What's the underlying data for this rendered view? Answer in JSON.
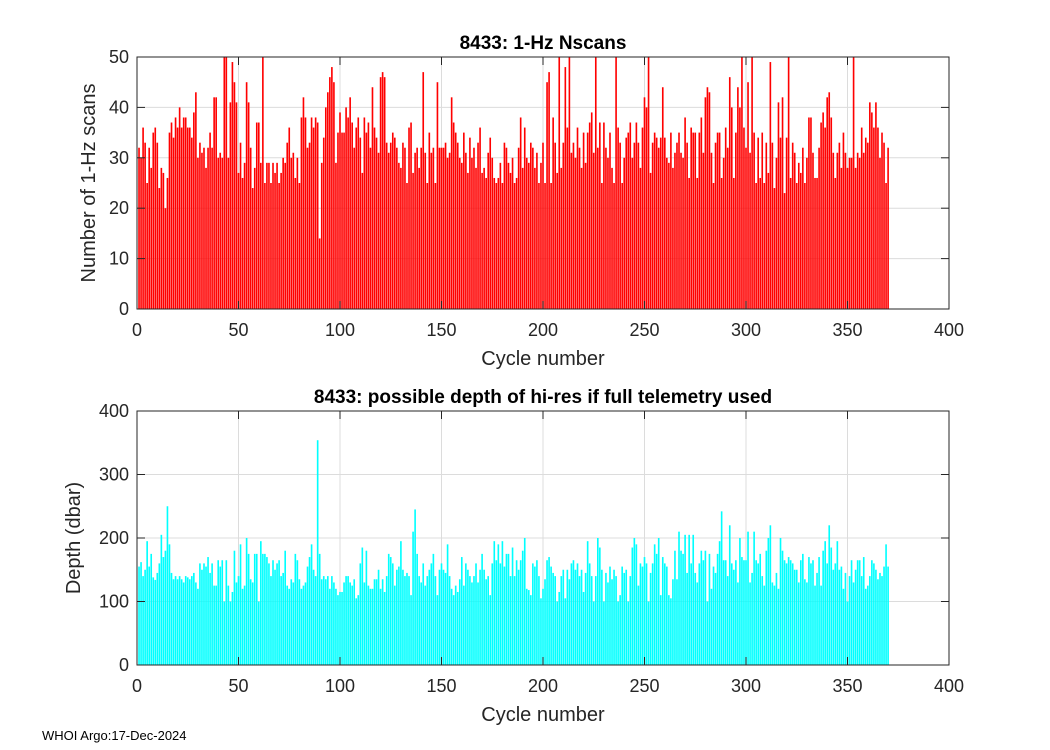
{
  "chart_data": [
    {
      "type": "bar",
      "title": "8433: 1-Hz Nscans",
      "xlabel": "Cycle number",
      "ylabel": "Number of 1-Hz scans",
      "xlim": [
        0,
        400
      ],
      "ylim": [
        0,
        50
      ],
      "xticks": [
        0,
        50,
        100,
        150,
        200,
        250,
        300,
        350,
        400
      ],
      "yticks": [
        0,
        10,
        20,
        30,
        40,
        50
      ],
      "grid": true,
      "color": "#ff0000",
      "x_start": 1,
      "values": [
        32,
        30,
        36,
        33,
        25,
        32,
        28,
        35,
        36,
        33,
        24,
        28,
        27,
        20,
        26,
        35,
        37,
        34,
        38,
        36,
        40,
        36,
        38,
        38,
        36,
        36,
        34,
        39,
        43,
        30,
        33,
        31,
        32,
        28,
        32,
        35,
        32,
        42,
        42,
        30,
        31,
        30,
        50,
        50,
        30,
        41,
        49,
        45,
        41,
        27,
        33,
        26,
        29,
        45,
        41,
        32,
        24,
        28,
        37,
        37,
        29,
        50,
        25,
        29,
        29,
        25,
        29,
        27,
        29,
        25,
        27,
        30,
        29,
        33,
        36,
        30,
        31,
        26,
        30,
        25,
        38,
        42,
        38,
        32,
        33,
        38,
        36,
        38,
        37,
        14,
        29,
        34,
        40,
        43,
        46,
        48,
        45,
        29,
        35,
        39,
        35,
        35,
        40,
        38,
        42,
        37,
        32,
        36,
        38,
        34,
        27,
        38,
        35,
        37,
        32,
        44,
        36,
        34,
        31,
        46,
        47,
        46,
        33,
        31,
        33,
        35,
        34,
        32,
        29,
        28,
        33,
        32,
        25,
        36,
        37,
        27,
        31,
        32,
        28,
        32,
        47,
        31,
        25,
        35,
        31,
        32,
        25,
        45,
        32,
        32,
        32,
        33,
        30,
        31,
        42,
        37,
        35,
        33,
        30,
        29,
        35,
        31,
        27,
        34,
        30,
        32,
        28,
        33,
        36,
        27,
        28,
        26,
        31,
        34,
        30,
        26,
        25,
        26,
        29,
        25,
        33,
        32,
        29,
        27,
        30,
        25,
        26,
        32,
        38,
        28,
        36,
        30,
        29,
        33,
        32,
        28,
        31,
        25,
        29,
        33,
        25,
        45,
        47,
        25,
        38,
        33,
        27,
        50,
        28,
        33,
        48,
        36,
        50,
        31,
        33,
        30,
        36,
        32,
        28,
        35,
        29,
        35,
        37,
        39,
        31,
        50,
        32,
        37,
        25,
        37,
        32,
        30,
        35,
        28,
        25,
        50,
        36,
        33,
        25,
        30,
        34,
        35,
        37,
        30,
        33,
        37,
        33,
        28,
        36,
        42,
        40,
        50,
        27,
        33,
        35,
        34,
        32,
        34,
        44,
        34,
        30,
        29,
        35,
        28,
        31,
        33,
        35,
        31,
        30,
        38,
        33,
        26,
        36,
        35,
        35,
        26,
        35,
        38,
        31,
        42,
        44,
        43,
        31,
        25,
        33,
        35,
        35,
        26,
        30,
        36,
        32,
        46,
        40,
        26,
        35,
        44,
        40,
        50,
        36,
        32,
        45,
        31,
        50,
        35,
        25,
        34,
        26,
        35,
        25,
        33,
        27,
        49,
        33,
        24,
        30,
        41,
        34,
        42,
        23,
        34,
        50,
        26,
        33,
        31,
        25,
        29,
        27,
        32,
        25,
        30,
        38,
        38,
        31,
        26,
        26,
        32,
        37,
        39,
        36,
        42,
        43,
        38,
        31,
        26,
        31,
        33,
        28,
        35,
        31,
        28,
        30,
        30,
        50,
        28,
        31,
        30,
        36,
        31,
        34,
        33,
        41,
        39,
        36,
        41,
        36,
        30,
        35,
        33,
        25,
        32
      ]
    },
    {
      "type": "bar",
      "title": "8433: possible depth of hi-res if full telemetry used",
      "xlabel": "Cycle number",
      "ylabel": "Depth (dbar)",
      "xlim": [
        0,
        400
      ],
      "ylim": [
        0,
        400
      ],
      "xticks": [
        0,
        50,
        100,
        150,
        200,
        250,
        300,
        350,
        400
      ],
      "yticks": [
        0,
        100,
        200,
        300,
        400
      ],
      "grid": true,
      "color": "#00ffff",
      "x_start": 1,
      "values": [
        155,
        162,
        140,
        150,
        195,
        155,
        175,
        138,
        134,
        145,
        160,
        205,
        170,
        180,
        250,
        190,
        145,
        135,
        140,
        135,
        140,
        135,
        130,
        140,
        138,
        135,
        140,
        145,
        130,
        120,
        160,
        150,
        160,
        155,
        170,
        145,
        160,
        125,
        125,
        165,
        155,
        165,
        100,
        165,
        125,
        100,
        115,
        180,
        130,
        140,
        190,
        120,
        125,
        200,
        175,
        135,
        130,
        175,
        175,
        100,
        195,
        175,
        175,
        170,
        160,
        140,
        165,
        150,
        160,
        165,
        140,
        145,
        180,
        125,
        120,
        135,
        130,
        175,
        165,
        135,
        120,
        125,
        130,
        155,
        170,
        190,
        150,
        140,
        354,
        175,
        135,
        140,
        135,
        140,
        120,
        140,
        130,
        120,
        110,
        115,
        115,
        130,
        140,
        140,
        130,
        125,
        135,
        105,
        110,
        160,
        185,
        130,
        180,
        125,
        120,
        120,
        135,
        135,
        150,
        120,
        135,
        115,
        140,
        175,
        170,
        160,
        125,
        150,
        155,
        195,
        150,
        140,
        145,
        140,
        110,
        210,
        245,
        175,
        140,
        130,
        160,
        125,
        140,
        150,
        160,
        175,
        140,
        110,
        150,
        160,
        150,
        145,
        190,
        140,
        120,
        110,
        125,
        115,
        135,
        170,
        125,
        160,
        150,
        140,
        130,
        140,
        160,
        130,
        150,
        175,
        150,
        135,
        140,
        110,
        160,
        195,
        165,
        190,
        160,
        195,
        155,
        175,
        175,
        140,
        185,
        140,
        165,
        150,
        165,
        180,
        200,
        120,
        118,
        110,
        160,
        155,
        165,
        140,
        105,
        120,
        135,
        165,
        170,
        155,
        145,
        140,
        100,
        115,
        140,
        150,
        105,
        150,
        135,
        160,
        165,
        150,
        160,
        140,
        150,
        115,
        145,
        195,
        160,
        140,
        100,
        140,
        200,
        185,
        150,
        100,
        145,
        130,
        155,
        135,
        150,
        140,
        100,
        110,
        155,
        145,
        150,
        100,
        140,
        185,
        200,
        190,
        125,
        160,
        155,
        170,
        160,
        100,
        145,
        160,
        190,
        175,
        200,
        110,
        170,
        160,
        155,
        110,
        105,
        135,
        180,
        135,
        210,
        180,
        175,
        205,
        145,
        205,
        160,
        205,
        145,
        130,
        160,
        180,
        165,
        180,
        100,
        175,
        120,
        155,
        145,
        175,
        195,
        242,
        165,
        165,
        140,
        220,
        160,
        150,
        165,
        130,
        200,
        170,
        165,
        165,
        210,
        130,
        145,
        210,
        165,
        160,
        175,
        140,
        125,
        180,
        200,
        220,
        130,
        125,
        145,
        120,
        200,
        180,
        165,
        160,
        170,
        165,
        160,
        150,
        150,
        130,
        165,
        175,
        135,
        130,
        170,
        160,
        165,
        125,
        145,
        170,
        125,
        180,
        195,
        160,
        220,
        185,
        150,
        160,
        195,
        150,
        155,
        120,
        145,
        100,
        140,
        165,
        130,
        150,
        165,
        165,
        140,
        170,
        120,
        125,
        140,
        165,
        160,
        150,
        135,
        145,
        140,
        155,
        190,
        155
      ]
    }
  ],
  "footer": "WHOI Argo:17-Dec-2024"
}
